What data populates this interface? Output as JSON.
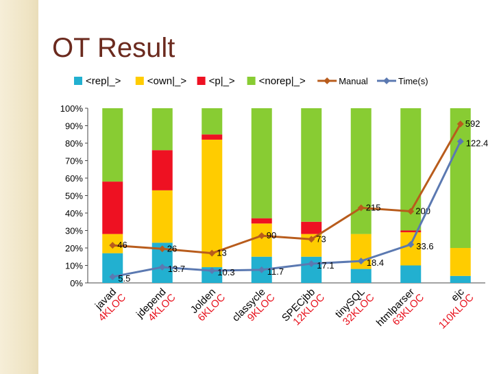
{
  "slide": {
    "title": "OT Result"
  },
  "chart_data": {
    "type": "bar",
    "stacked": true,
    "percent": true,
    "categories": [
      "javad",
      "jdepend",
      "Jolden",
      "classycle",
      "SPECjbb",
      "tinySQL",
      "htmlparser",
      "ejc"
    ],
    "category_sizes": [
      "4KLOC",
      "4KLOC",
      "6KLOC",
      "9KLOC",
      "12KLOC",
      "32KLOC",
      "63KLOC",
      "110KLOC"
    ],
    "series": [
      {
        "name": "<rep|_>",
        "color": "#22b0d0",
        "values": [
          17,
          23,
          9,
          15,
          15,
          8,
          10,
          4
        ]
      },
      {
        "name": "<own|_>",
        "color": "#ffcc00",
        "values": [
          11,
          30,
          73,
          19,
          13,
          20,
          19,
          16
        ]
      },
      {
        "name": "<p|_>",
        "color": "#ee1122",
        "values": [
          30,
          23,
          3,
          3,
          7,
          0,
          1,
          0
        ]
      },
      {
        "name": "<norep|_>",
        "color": "#88cc33",
        "values": [
          42,
          24,
          15,
          63,
          65,
          72,
          70,
          80
        ]
      }
    ],
    "lines": [
      {
        "name": "Manual",
        "color": "#b85c1c",
        "marker": "diamond",
        "y_percent": [
          21.5,
          19.5,
          17,
          27,
          25,
          43,
          41,
          91
        ],
        "labels": [
          "46",
          "26",
          "13",
          "90",
          "73",
          "215",
          "200",
          "592"
        ]
      },
      {
        "name": "Time(s)",
        "color": "#5b79b1",
        "marker": "diamond",
        "y_percent": [
          3.5,
          9,
          7,
          7.5,
          11,
          12.5,
          22,
          81
        ],
        "labels": [
          "5.5",
          "13.7",
          "10.3",
          "11.7",
          "17.1",
          "18.4",
          "33.6",
          "122.4"
        ]
      }
    ],
    "yticks": [
      "0%",
      "10%",
      "20%",
      "30%",
      "40%",
      "50%",
      "60%",
      "70%",
      "80%",
      "90%",
      "100%"
    ],
    "ylim": [
      0,
      100
    ],
    "legend": "top",
    "grid": false
  }
}
